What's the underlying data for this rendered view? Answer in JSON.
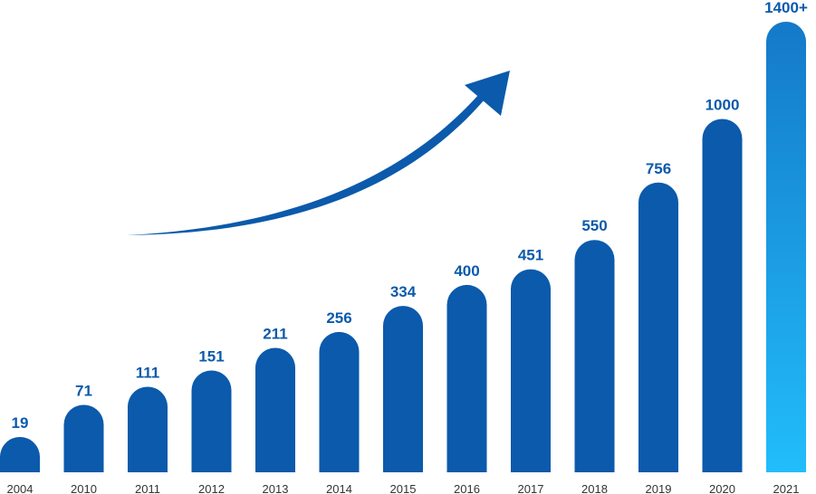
{
  "chart_data": {
    "type": "bar",
    "categories": [
      "2004",
      "2010",
      "2011",
      "2012",
      "2013",
      "2014",
      "2015",
      "2016",
      "2017",
      "2018",
      "2019",
      "2020",
      "2021"
    ],
    "values": [
      19,
      71,
      111,
      151,
      211,
      256,
      334,
      400,
      451,
      550,
      756,
      1000,
      1400
    ],
    "data_labels": [
      "19",
      "71",
      "111",
      "151",
      "211",
      "256",
      "334",
      "400",
      "451",
      "550",
      "756",
      "1000",
      "1400+"
    ],
    "title": "",
    "xlabel": "",
    "ylabel": "",
    "grid": false,
    "legend": "none",
    "annotations": [
      "upward-trend-arrow"
    ],
    "colors": {
      "bar": "#0b5aab",
      "highlight_top": "#1479c9",
      "highlight_bottom": "#22bdfb",
      "label": "#0b5aab",
      "tick": "#333333",
      "arrow": "#0b5aab"
    }
  }
}
